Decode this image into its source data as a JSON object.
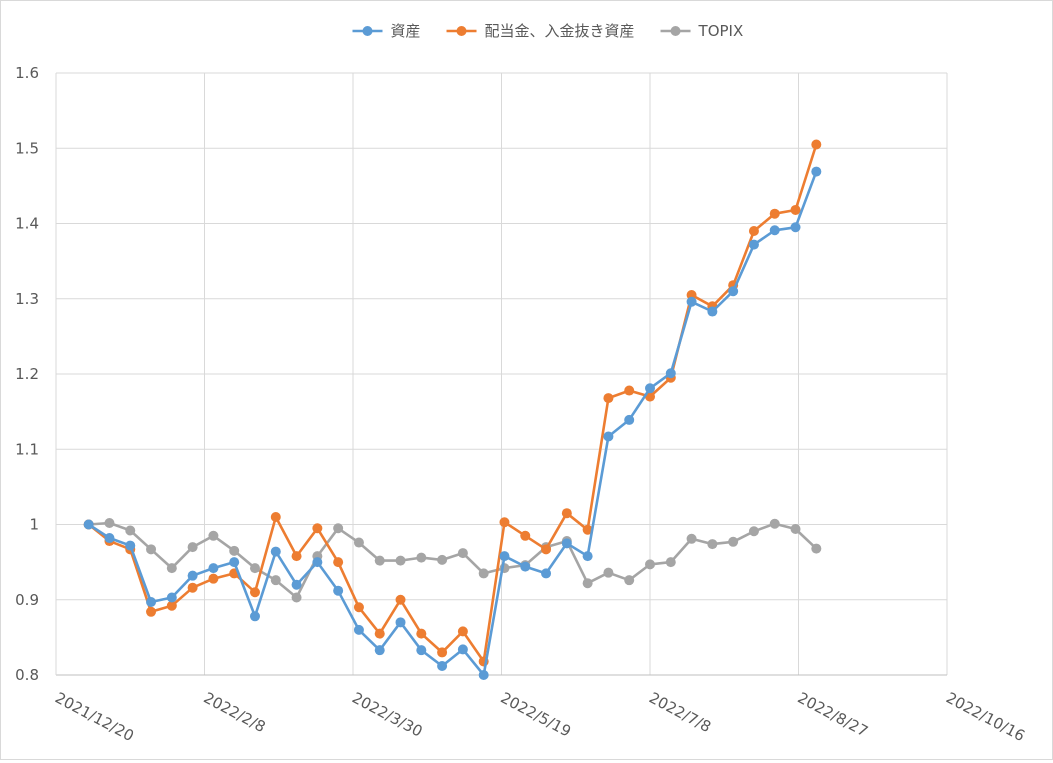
{
  "chart_data": {
    "type": "line",
    "title": "",
    "xlabel": "",
    "ylabel": "",
    "ylim": [
      0.8,
      1.6
    ],
    "x_axis_type": "date",
    "xlim": [
      "2021-12-20",
      "2022-10-16"
    ],
    "x_tick_labels": [
      "2021/12/20",
      "2022/2/8",
      "2022/3/30",
      "2022/5/19",
      "2022/7/8",
      "2022/8/27",
      "2022/10/16"
    ],
    "x_tick_dates": [
      "2021-12-20",
      "2022-02-08",
      "2022-03-30",
      "2022-05-19",
      "2022-07-08",
      "2022-08-27",
      "2022-10-16"
    ],
    "y_ticks": [
      0.8,
      0.9,
      1.0,
      1.1,
      1.2,
      1.3,
      1.4,
      1.5,
      1.6
    ],
    "y_tick_labels": [
      "0.8",
      "0.9",
      "1",
      "1.1",
      "1.2",
      "1.3",
      "1.4",
      "1.5",
      "1.6"
    ],
    "grid": true,
    "legend_position": "top",
    "dates": [
      "2021-12-31",
      "2022-01-07",
      "2022-01-14",
      "2022-01-21",
      "2022-01-28",
      "2022-02-04",
      "2022-02-11",
      "2022-02-18",
      "2022-02-25",
      "2022-03-04",
      "2022-03-11",
      "2022-03-18",
      "2022-03-25",
      "2022-04-01",
      "2022-04-08",
      "2022-04-15",
      "2022-04-22",
      "2022-04-29",
      "2022-05-06",
      "2022-05-13",
      "2022-05-20",
      "2022-05-27",
      "2022-06-03",
      "2022-06-10",
      "2022-06-17",
      "2022-06-24",
      "2022-07-01",
      "2022-07-08",
      "2022-07-15",
      "2022-07-22",
      "2022-07-29",
      "2022-08-05",
      "2022-08-12",
      "2022-08-19",
      "2022-08-26",
      "2022-09-02"
    ],
    "series": [
      {
        "name": "資産",
        "color": "#5B9BD5",
        "values": [
          1.0,
          0.982,
          0.972,
          0.897,
          0.903,
          0.932,
          0.942,
          0.95,
          0.878,
          0.964,
          0.92,
          0.95,
          0.912,
          0.86,
          0.833,
          0.87,
          0.833,
          0.812,
          0.834,
          0.8,
          0.958,
          0.944,
          0.935,
          0.975,
          0.958,
          1.117,
          1.139,
          1.181,
          1.201,
          1.296,
          1.283,
          1.31,
          1.372,
          1.391,
          1.395,
          1.469
        ]
      },
      {
        "name": "配当金、入金抜き資産",
        "color": "#ED7D31",
        "values": [
          1.0,
          0.978,
          0.967,
          0.884,
          0.892,
          0.916,
          0.928,
          0.935,
          0.91,
          1.01,
          0.958,
          0.995,
          0.95,
          0.89,
          0.855,
          0.9,
          0.855,
          0.83,
          0.858,
          0.818,
          1.003,
          0.985,
          0.967,
          1.015,
          0.993,
          1.168,
          1.178,
          1.17,
          1.195,
          1.305,
          1.29,
          1.318,
          1.39,
          1.413,
          1.418,
          1.505
        ]
      },
      {
        "name": "TOPIX",
        "color": "#A5A5A5",
        "values": [
          1.0,
          1.002,
          0.992,
          0.967,
          0.942,
          0.97,
          0.985,
          0.965,
          0.942,
          0.926,
          0.903,
          0.958,
          0.995,
          0.976,
          0.952,
          0.952,
          0.956,
          0.953,
          0.962,
          0.935,
          0.942,
          0.946,
          0.97,
          0.978,
          0.922,
          0.936,
          0.926,
          0.947,
          0.95,
          0.981,
          0.974,
          0.977,
          0.991,
          1.001,
          0.994,
          0.968
        ]
      }
    ]
  }
}
